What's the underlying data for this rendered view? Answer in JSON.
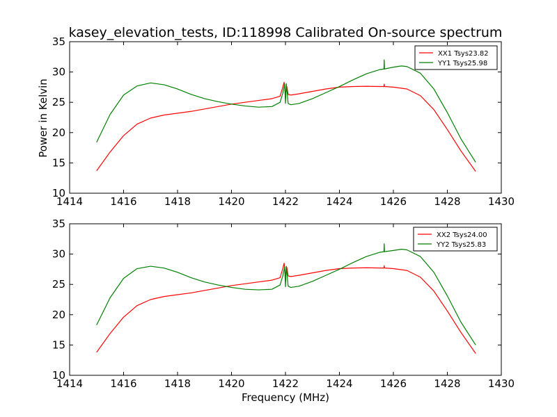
{
  "figure": {
    "title": "kasey_elevation_tests, ID:118998 Calibrated On-source spectrum",
    "ylabel": "Power in Kelvin",
    "xlabel": "Frequency (MHz)"
  },
  "chart_data": [
    {
      "type": "line",
      "xlim": [
        1414,
        1430
      ],
      "ylim": [
        10,
        35
      ],
      "xticks": [
        1414,
        1416,
        1418,
        1420,
        1422,
        1424,
        1426,
        1428,
        1430
      ],
      "yticks": [
        10,
        15,
        20,
        25,
        30,
        35
      ],
      "legend": "top-right",
      "grid": false,
      "series": [
        {
          "name": "XX1 Tsys23.82",
          "color": "#ff0000",
          "x": [
            1415.0,
            1415.5,
            1416.0,
            1416.5,
            1417.0,
            1417.5,
            1418.0,
            1418.5,
            1419.0,
            1419.5,
            1420.0,
            1420.5,
            1421.0,
            1421.5,
            1421.8,
            1421.9,
            1421.95,
            1422.0,
            1422.05,
            1422.1,
            1422.2,
            1422.5,
            1423.0,
            1423.5,
            1424.0,
            1424.5,
            1425.0,
            1425.5,
            1425.65,
            1425.66,
            1425.67,
            1426.0,
            1426.5,
            1427.0,
            1427.5,
            1428.0,
            1428.5,
            1429.05
          ],
          "y": [
            13.7,
            16.8,
            19.5,
            21.4,
            22.4,
            22.9,
            23.2,
            23.5,
            23.9,
            24.3,
            24.7,
            25.0,
            25.3,
            25.6,
            26.0,
            27.5,
            28.3,
            26.3,
            27.6,
            26.3,
            26.2,
            26.4,
            26.8,
            27.2,
            27.5,
            27.6,
            27.65,
            27.6,
            27.6,
            28.0,
            27.6,
            27.5,
            27.2,
            26.1,
            23.8,
            20.5,
            17.0,
            13.6
          ]
        },
        {
          "name": "YY1 Tsys25.98",
          "color": "#008000",
          "x": [
            1415.0,
            1415.5,
            1416.0,
            1416.5,
            1417.0,
            1417.5,
            1418.0,
            1418.5,
            1419.0,
            1419.5,
            1420.0,
            1420.5,
            1421.0,
            1421.5,
            1421.8,
            1421.9,
            1421.97,
            1422.0,
            1422.03,
            1422.1,
            1422.2,
            1422.5,
            1423.0,
            1423.5,
            1424.0,
            1424.5,
            1425.0,
            1425.5,
            1425.65,
            1425.66,
            1425.67,
            1426.0,
            1426.3,
            1426.5,
            1427.0,
            1427.5,
            1428.0,
            1428.5,
            1429.05
          ],
          "y": [
            18.4,
            23.0,
            26.2,
            27.7,
            28.2,
            27.9,
            27.2,
            26.3,
            25.6,
            25.1,
            24.7,
            24.4,
            24.2,
            24.3,
            25.0,
            26.5,
            28.0,
            24.8,
            28.1,
            24.8,
            24.6,
            24.8,
            25.6,
            26.6,
            27.6,
            28.7,
            29.7,
            30.4,
            30.5,
            32.0,
            30.5,
            30.8,
            31.0,
            30.9,
            29.8,
            27.2,
            23.3,
            19.0,
            15.1
          ]
        }
      ]
    },
    {
      "type": "line",
      "xlim": [
        1414,
        1430
      ],
      "ylim": [
        10,
        35
      ],
      "xticks": [
        1414,
        1416,
        1418,
        1420,
        1422,
        1424,
        1426,
        1428,
        1430
      ],
      "yticks": [
        10,
        15,
        20,
        25,
        30,
        35
      ],
      "legend": "top-right",
      "grid": false,
      "series": [
        {
          "name": "XX2 Tsys24.00",
          "color": "#ff0000",
          "x": [
            1415.0,
            1415.5,
            1416.0,
            1416.5,
            1417.0,
            1417.5,
            1418.0,
            1418.5,
            1419.0,
            1419.5,
            1420.0,
            1420.5,
            1421.0,
            1421.5,
            1421.8,
            1421.9,
            1421.95,
            1422.0,
            1422.05,
            1422.1,
            1422.2,
            1422.5,
            1423.0,
            1423.5,
            1424.0,
            1424.5,
            1425.0,
            1425.5,
            1425.65,
            1425.66,
            1425.67,
            1426.0,
            1426.5,
            1427.0,
            1427.5,
            1428.0,
            1428.5,
            1429.05
          ],
          "y": [
            13.8,
            16.9,
            19.6,
            21.5,
            22.5,
            23.0,
            23.3,
            23.6,
            24.0,
            24.4,
            24.8,
            25.1,
            25.4,
            25.7,
            26.1,
            27.6,
            28.5,
            26.3,
            27.8,
            26.4,
            26.3,
            26.5,
            26.9,
            27.3,
            27.6,
            27.7,
            27.75,
            27.7,
            27.7,
            28.1,
            27.7,
            27.6,
            27.3,
            26.2,
            23.9,
            20.6,
            17.1,
            13.6
          ]
        },
        {
          "name": "YY2 Tsys25.83",
          "color": "#008000",
          "x": [
            1415.0,
            1415.5,
            1416.0,
            1416.5,
            1417.0,
            1417.5,
            1418.0,
            1418.5,
            1419.0,
            1419.5,
            1420.0,
            1420.5,
            1421.0,
            1421.5,
            1421.8,
            1421.9,
            1421.97,
            1422.0,
            1422.03,
            1422.1,
            1422.2,
            1422.5,
            1423.0,
            1423.5,
            1424.0,
            1424.5,
            1425.0,
            1425.5,
            1425.65,
            1425.66,
            1425.67,
            1426.0,
            1426.3,
            1426.5,
            1427.0,
            1427.5,
            1428.0,
            1428.5,
            1429.05
          ],
          "y": [
            18.3,
            22.8,
            26.0,
            27.6,
            28.0,
            27.7,
            27.0,
            26.1,
            25.4,
            24.9,
            24.5,
            24.2,
            24.1,
            24.2,
            24.9,
            26.4,
            27.9,
            24.6,
            28.0,
            24.7,
            24.5,
            24.7,
            25.5,
            26.5,
            27.5,
            28.6,
            29.6,
            30.3,
            30.4,
            31.7,
            30.4,
            30.6,
            30.8,
            30.7,
            29.6,
            27.0,
            23.1,
            18.8,
            15.0
          ]
        }
      ]
    }
  ]
}
